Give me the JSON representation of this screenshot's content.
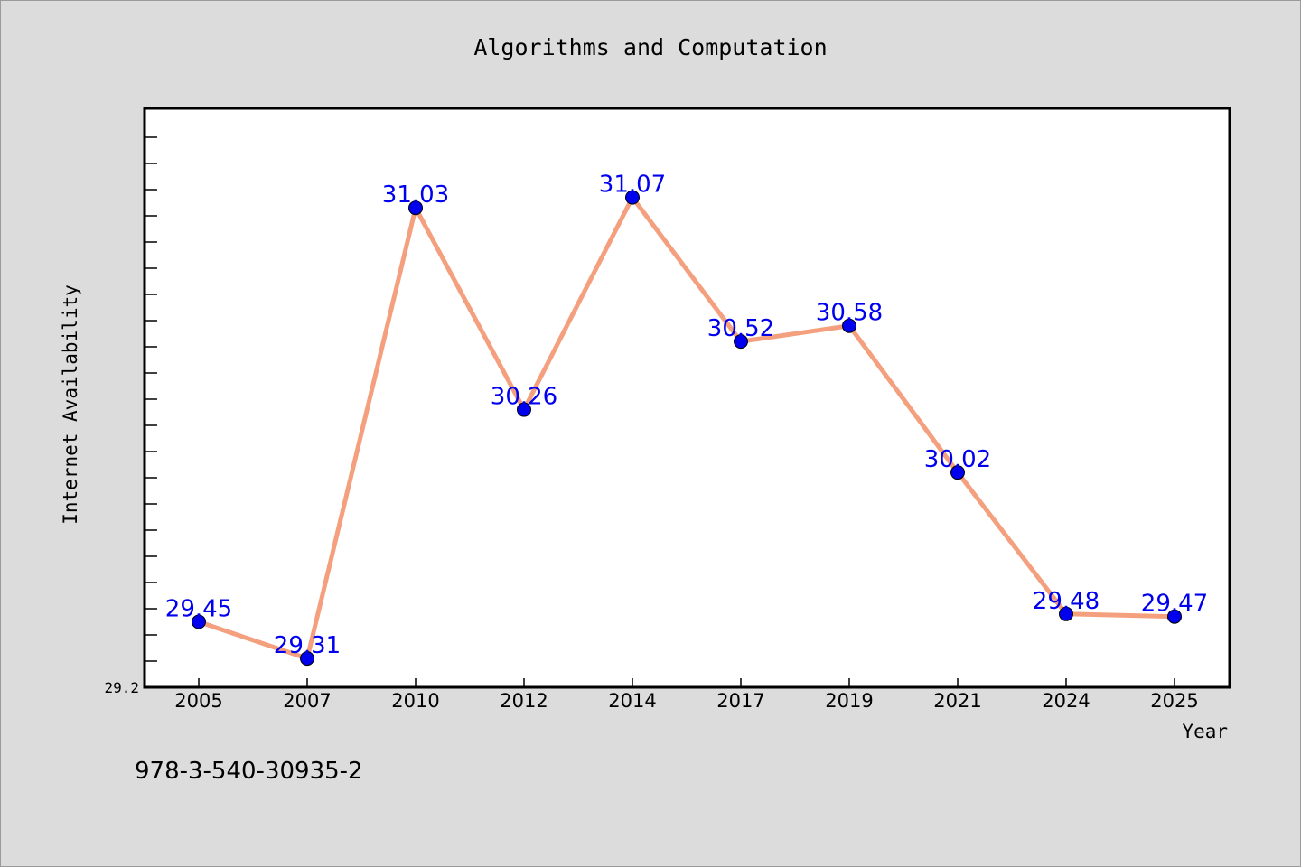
{
  "chart_data": {
    "type": "line",
    "title": "Algorithms and Computation",
    "xlabel": "Year",
    "ylabel": "Internet Availability",
    "categories": [
      "2005",
      "2007",
      "2010",
      "2012",
      "2014",
      "2017",
      "2019",
      "2021",
      "2024",
      "2025"
    ],
    "series": [
      {
        "values": [
          29.45,
          29.31,
          31.03,
          30.26,
          31.07,
          30.52,
          30.58,
          30.02,
          29.48,
          29.47
        ],
        "line_color": "#f4a07e",
        "marker_color": "#0000ee",
        "label_color": "#0000ee"
      }
    ],
    "ylim": [
      29.2,
      31.41
    ],
    "y_tick_labels": [
      "29.2"
    ],
    "grid": false,
    "annotation": "978-3-540-30935-2"
  },
  "colors": {
    "background": "#dcdcdc",
    "plot_background": "#ffffff",
    "axis": "#000000"
  }
}
